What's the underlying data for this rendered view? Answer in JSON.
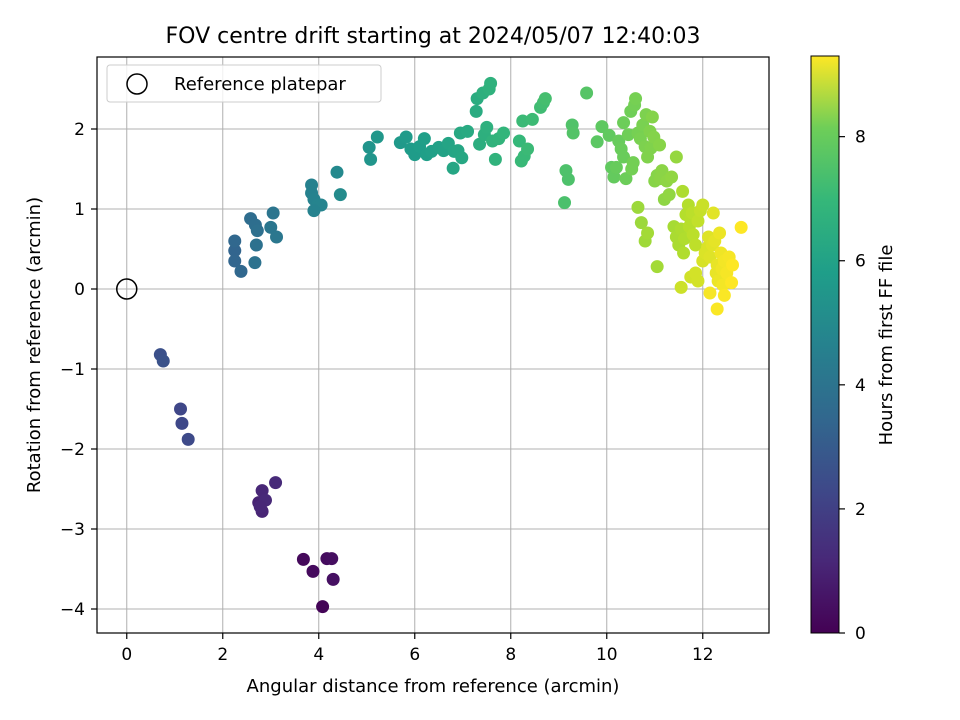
{
  "chart_data": {
    "type": "scatter",
    "title": "FOV centre drift starting at 2024/05/07 12:40:03",
    "xlabel": "Angular distance from reference (arcmin)",
    "ylabel": "Rotation from reference (arcmin)",
    "xlim": [
      -0.62,
      13.38
    ],
    "ylim": [
      -4.3,
      2.9
    ],
    "xticks": [
      0,
      2,
      4,
      6,
      8,
      10,
      12
    ],
    "yticks": [
      -4,
      -3,
      -2,
      -1,
      0,
      1,
      2
    ],
    "grid": true,
    "legend": {
      "placement": "top-left",
      "entries": [
        "Reference platepar"
      ]
    },
    "reference_point": {
      "x": 0,
      "y": 0
    },
    "colorbar": {
      "label": "Hours from first FF file",
      "colormap": "viridis",
      "range": [
        0,
        9.3
      ],
      "ticks": [
        0,
        2,
        4,
        6,
        8
      ]
    },
    "points": [
      {
        "x": 4.08,
        "y": -3.97,
        "h": 0.1
      },
      {
        "x": 3.68,
        "y": -3.38,
        "h": 0.2
      },
      {
        "x": 3.88,
        "y": -3.53,
        "h": 0.25
      },
      {
        "x": 4.17,
        "y": -3.37,
        "h": 0.3
      },
      {
        "x": 4.27,
        "y": -3.37,
        "h": 0.35
      },
      {
        "x": 4.3,
        "y": -3.63,
        "h": 0.4
      },
      {
        "x": 2.75,
        "y": -2.67,
        "h": 0.9
      },
      {
        "x": 2.82,
        "y": -2.78,
        "h": 0.95
      },
      {
        "x": 2.82,
        "y": -2.52,
        "h": 1.0
      },
      {
        "x": 2.89,
        "y": -2.64,
        "h": 1.05
      },
      {
        "x": 3.1,
        "y": -2.42,
        "h": 1.1
      },
      {
        "x": 2.78,
        "y": -2.72,
        "h": 1.0
      },
      {
        "x": 1.12,
        "y": -1.5,
        "h": 2.0
      },
      {
        "x": 1.15,
        "y": -1.68,
        "h": 2.05
      },
      {
        "x": 1.28,
        "y": -1.88,
        "h": 2.1
      },
      {
        "x": 0.7,
        "y": -0.82,
        "h": 2.3
      },
      {
        "x": 0.76,
        "y": -0.9,
        "h": 2.35
      },
      {
        "x": 2.25,
        "y": 0.48,
        "h": 3.0
      },
      {
        "x": 2.25,
        "y": 0.35,
        "h": 3.05
      },
      {
        "x": 2.38,
        "y": 0.22,
        "h": 3.1
      },
      {
        "x": 2.25,
        "y": 0.6,
        "h": 3.1
      },
      {
        "x": 2.58,
        "y": 0.88,
        "h": 3.3
      },
      {
        "x": 2.68,
        "y": 0.8,
        "h": 3.35
      },
      {
        "x": 2.72,
        "y": 0.73,
        "h": 3.4
      },
      {
        "x": 2.7,
        "y": 0.55,
        "h": 3.45
      },
      {
        "x": 2.67,
        "y": 0.33,
        "h": 3.5
      },
      {
        "x": 3.05,
        "y": 0.95,
        "h": 3.6
      },
      {
        "x": 3.0,
        "y": 0.77,
        "h": 3.65
      },
      {
        "x": 3.12,
        "y": 0.65,
        "h": 3.7
      },
      {
        "x": 3.85,
        "y": 1.3,
        "h": 4.1
      },
      {
        "x": 3.85,
        "y": 1.2,
        "h": 4.1
      },
      {
        "x": 3.9,
        "y": 1.12,
        "h": 4.15
      },
      {
        "x": 3.98,
        "y": 1.05,
        "h": 4.2
      },
      {
        "x": 4.05,
        "y": 1.05,
        "h": 4.2
      },
      {
        "x": 3.9,
        "y": 0.98,
        "h": 4.15
      },
      {
        "x": 4.38,
        "y": 1.46,
        "h": 4.4
      },
      {
        "x": 4.45,
        "y": 1.18,
        "h": 4.45
      },
      {
        "x": 5.05,
        "y": 1.77,
        "h": 4.8
      },
      {
        "x": 5.08,
        "y": 1.62,
        "h": 4.85
      },
      {
        "x": 5.22,
        "y": 1.9,
        "h": 4.9
      },
      {
        "x": 5.7,
        "y": 1.83,
        "h": 5.0
      },
      {
        "x": 5.82,
        "y": 1.9,
        "h": 5.05
      },
      {
        "x": 5.92,
        "y": 1.75,
        "h": 5.1
      },
      {
        "x": 6.0,
        "y": 1.68,
        "h": 5.1
      },
      {
        "x": 6.1,
        "y": 1.78,
        "h": 5.15
      },
      {
        "x": 6.2,
        "y": 1.88,
        "h": 5.2
      },
      {
        "x": 6.25,
        "y": 1.68,
        "h": 5.2
      },
      {
        "x": 6.35,
        "y": 1.72,
        "h": 5.25
      },
      {
        "x": 6.5,
        "y": 1.77,
        "h": 5.3
      },
      {
        "x": 6.6,
        "y": 1.73,
        "h": 5.35
      },
      {
        "x": 6.7,
        "y": 1.82,
        "h": 5.4
      },
      {
        "x": 6.82,
        "y": 1.72,
        "h": 5.45
      },
      {
        "x": 6.9,
        "y": 1.73,
        "h": 5.5
      },
      {
        "x": 6.8,
        "y": 1.51,
        "h": 5.5
      },
      {
        "x": 6.98,
        "y": 1.64,
        "h": 5.55
      },
      {
        "x": 6.95,
        "y": 1.95,
        "h": 5.6
      },
      {
        "x": 7.1,
        "y": 1.97,
        "h": 5.65
      },
      {
        "x": 7.28,
        "y": 2.22,
        "h": 5.7
      },
      {
        "x": 7.3,
        "y": 2.38,
        "h": 5.75
      },
      {
        "x": 7.35,
        "y": 1.81,
        "h": 5.8
      },
      {
        "x": 7.45,
        "y": 1.93,
        "h": 5.85
      },
      {
        "x": 7.42,
        "y": 2.45,
        "h": 5.85
      },
      {
        "x": 7.5,
        "y": 2.02,
        "h": 5.9
      },
      {
        "x": 7.55,
        "y": 2.5,
        "h": 5.95
      },
      {
        "x": 7.58,
        "y": 2.57,
        "h": 5.95
      },
      {
        "x": 7.62,
        "y": 1.85,
        "h": 6.0
      },
      {
        "x": 7.68,
        "y": 1.62,
        "h": 6.0
      },
      {
        "x": 7.75,
        "y": 1.88,
        "h": 6.05
      },
      {
        "x": 7.85,
        "y": 1.95,
        "h": 6.1
      },
      {
        "x": 8.18,
        "y": 1.85,
        "h": 6.2
      },
      {
        "x": 8.22,
        "y": 1.6,
        "h": 6.25
      },
      {
        "x": 8.28,
        "y": 1.66,
        "h": 6.25
      },
      {
        "x": 8.35,
        "y": 1.75,
        "h": 6.3
      },
      {
        "x": 8.25,
        "y": 2.1,
        "h": 6.3
      },
      {
        "x": 8.45,
        "y": 2.12,
        "h": 6.35
      },
      {
        "x": 8.62,
        "y": 2.27,
        "h": 6.4
      },
      {
        "x": 8.68,
        "y": 2.33,
        "h": 6.45
      },
      {
        "x": 8.72,
        "y": 2.38,
        "h": 6.5
      },
      {
        "x": 9.12,
        "y": 1.08,
        "h": 6.6
      },
      {
        "x": 9.15,
        "y": 1.48,
        "h": 6.65
      },
      {
        "x": 9.2,
        "y": 1.37,
        "h": 6.65
      },
      {
        "x": 9.28,
        "y": 2.05,
        "h": 6.7
      },
      {
        "x": 9.3,
        "y": 1.95,
        "h": 6.75
      },
      {
        "x": 9.58,
        "y": 2.45,
        "h": 6.8
      },
      {
        "x": 9.8,
        "y": 1.84,
        "h": 6.9
      },
      {
        "x": 9.9,
        "y": 2.03,
        "h": 6.95
      },
      {
        "x": 10.05,
        "y": 1.92,
        "h": 7.0
      },
      {
        "x": 10.1,
        "y": 1.52,
        "h": 7.0
      },
      {
        "x": 10.15,
        "y": 1.4,
        "h": 7.05
      },
      {
        "x": 10.2,
        "y": 1.52,
        "h": 7.1
      },
      {
        "x": 10.25,
        "y": 1.85,
        "h": 7.1
      },
      {
        "x": 10.3,
        "y": 1.75,
        "h": 7.15
      },
      {
        "x": 10.35,
        "y": 1.65,
        "h": 7.15
      },
      {
        "x": 10.35,
        "y": 2.08,
        "h": 7.2
      },
      {
        "x": 10.4,
        "y": 1.38,
        "h": 7.2
      },
      {
        "x": 10.45,
        "y": 1.93,
        "h": 7.25
      },
      {
        "x": 10.5,
        "y": 2.22,
        "h": 7.25
      },
      {
        "x": 10.52,
        "y": 1.5,
        "h": 7.3
      },
      {
        "x": 10.55,
        "y": 1.58,
        "h": 7.3
      },
      {
        "x": 10.58,
        "y": 2.3,
        "h": 7.3
      },
      {
        "x": 10.6,
        "y": 2.38,
        "h": 7.35
      },
      {
        "x": 10.65,
        "y": 1.95,
        "h": 7.35
      },
      {
        "x": 10.7,
        "y": 1.88,
        "h": 7.4
      },
      {
        "x": 10.75,
        "y": 2.05,
        "h": 7.4
      },
      {
        "x": 10.8,
        "y": 1.78,
        "h": 7.45
      },
      {
        "x": 10.82,
        "y": 2.18,
        "h": 7.45
      },
      {
        "x": 10.85,
        "y": 1.65,
        "h": 7.5
      },
      {
        "x": 10.9,
        "y": 1.97,
        "h": 7.5
      },
      {
        "x": 10.92,
        "y": 1.76,
        "h": 7.5
      },
      {
        "x": 10.95,
        "y": 2.15,
        "h": 7.55
      },
      {
        "x": 10.98,
        "y": 1.9,
        "h": 7.55
      },
      {
        "x": 11.0,
        "y": 1.35,
        "h": 7.6
      },
      {
        "x": 11.05,
        "y": 1.42,
        "h": 7.6
      },
      {
        "x": 11.1,
        "y": 1.8,
        "h": 7.6
      },
      {
        "x": 11.12,
        "y": 1.38,
        "h": 7.65
      },
      {
        "x": 11.15,
        "y": 1.48,
        "h": 7.65
      },
      {
        "x": 11.2,
        "y": 1.12,
        "h": 7.7
      },
      {
        "x": 11.25,
        "y": 1.35,
        "h": 7.7
      },
      {
        "x": 11.3,
        "y": 1.18,
        "h": 7.75
      },
      {
        "x": 11.35,
        "y": 1.4,
        "h": 7.75
      },
      {
        "x": 11.45,
        "y": 1.65,
        "h": 7.8
      },
      {
        "x": 10.65,
        "y": 1.02,
        "h": 7.9
      },
      {
        "x": 10.72,
        "y": 0.83,
        "h": 7.9
      },
      {
        "x": 10.8,
        "y": 0.6,
        "h": 7.95
      },
      {
        "x": 10.85,
        "y": 0.7,
        "h": 8.0
      },
      {
        "x": 11.05,
        "y": 0.28,
        "h": 8.0
      },
      {
        "x": 11.4,
        "y": 0.78,
        "h": 8.05
      },
      {
        "x": 11.45,
        "y": 0.65,
        "h": 8.1
      },
      {
        "x": 11.5,
        "y": 0.55,
        "h": 8.1
      },
      {
        "x": 11.55,
        "y": 0.75,
        "h": 8.15
      },
      {
        "x": 11.58,
        "y": 1.22,
        "h": 8.15
      },
      {
        "x": 11.6,
        "y": 0.45,
        "h": 8.2
      },
      {
        "x": 11.62,
        "y": 0.63,
        "h": 8.2
      },
      {
        "x": 11.65,
        "y": 0.93,
        "h": 8.25
      },
      {
        "x": 11.7,
        "y": 1.05,
        "h": 8.25
      },
      {
        "x": 11.72,
        "y": 0.78,
        "h": 8.3
      },
      {
        "x": 11.75,
        "y": 0.87,
        "h": 8.3
      },
      {
        "x": 11.78,
        "y": 0.95,
        "h": 8.35
      },
      {
        "x": 11.8,
        "y": 0.68,
        "h": 8.35
      },
      {
        "x": 11.85,
        "y": 0.55,
        "h": 8.4
      },
      {
        "x": 11.9,
        "y": 0.85,
        "h": 8.45
      },
      {
        "x": 11.95,
        "y": 0.98,
        "h": 8.5
      },
      {
        "x": 12.0,
        "y": 1.05,
        "h": 8.55
      },
      {
        "x": 11.55,
        "y": 0.02,
        "h": 8.6
      },
      {
        "x": 11.75,
        "y": 0.15,
        "h": 8.65
      },
      {
        "x": 11.85,
        "y": 0.2,
        "h": 8.7
      },
      {
        "x": 11.9,
        "y": 0.1,
        "h": 8.7
      },
      {
        "x": 12.0,
        "y": 0.35,
        "h": 8.75
      },
      {
        "x": 12.05,
        "y": 0.45,
        "h": 8.8
      },
      {
        "x": 12.1,
        "y": 0.52,
        "h": 8.8
      },
      {
        "x": 12.12,
        "y": 0.65,
        "h": 8.85
      },
      {
        "x": 12.15,
        "y": 0.4,
        "h": 8.85
      },
      {
        "x": 12.2,
        "y": 0.55,
        "h": 8.9
      },
      {
        "x": 12.22,
        "y": 0.95,
        "h": 8.9
      },
      {
        "x": 12.25,
        "y": 0.6,
        "h": 8.95
      },
      {
        "x": 12.28,
        "y": 0.2,
        "h": 9.0
      },
      {
        "x": 12.3,
        "y": 0.3,
        "h": 9.0
      },
      {
        "x": 12.32,
        "y": 0.1,
        "h": 9.05
      },
      {
        "x": 12.35,
        "y": 0.7,
        "h": 9.05
      },
      {
        "x": 12.38,
        "y": 0.45,
        "h": 9.1
      },
      {
        "x": 12.4,
        "y": 0.25,
        "h": 9.1
      },
      {
        "x": 12.42,
        "y": 0.05,
        "h": 9.15
      },
      {
        "x": 12.45,
        "y": 0.35,
        "h": 9.15
      },
      {
        "x": 12.5,
        "y": 0.2,
        "h": 9.2
      },
      {
        "x": 12.55,
        "y": 0.4,
        "h": 9.2
      },
      {
        "x": 12.15,
        "y": -0.05,
        "h": 9.2
      },
      {
        "x": 12.3,
        "y": -0.25,
        "h": 9.25
      },
      {
        "x": 12.45,
        "y": -0.08,
        "h": 9.25
      },
      {
        "x": 12.62,
        "y": 0.3,
        "h": 9.3
      },
      {
        "x": 12.6,
        "y": 0.08,
        "h": 9.3
      },
      {
        "x": 12.8,
        "y": 0.77,
        "h": 9.3
      }
    ]
  }
}
